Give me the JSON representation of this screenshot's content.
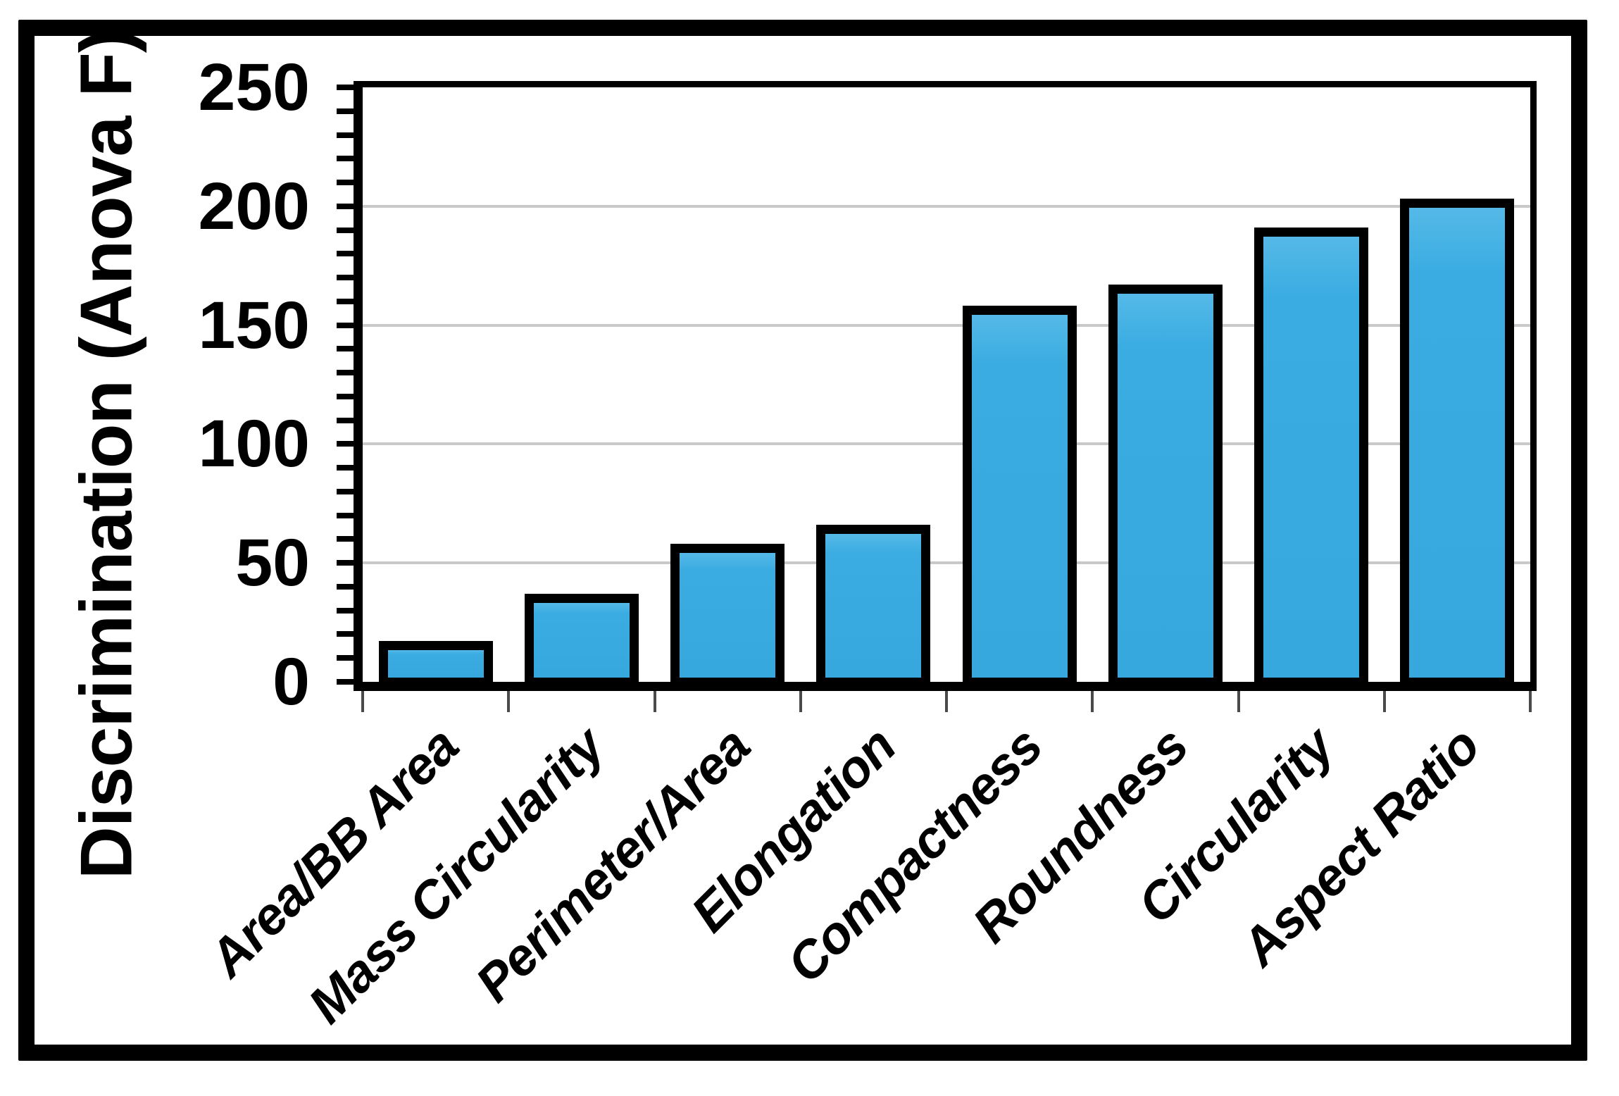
{
  "colors": {
    "bar_fill": "#3aace1",
    "bar_border": "#000000",
    "gridline": "#c9c9c9",
    "axis": "#000000",
    "background": "#ffffff"
  },
  "y_axis": {
    "title": "Discrimination (Anova F)",
    "tick_labels": [
      "0",
      "50",
      "100",
      "150",
      "200",
      "250"
    ],
    "tick_values": [
      0,
      50,
      100,
      150,
      200,
      250
    ],
    "minor_tick_step": 10
  },
  "chart_data": {
    "type": "bar",
    "title": "",
    "xlabel": "",
    "ylabel": "Discrimination (Anova F)",
    "categories": [
      "Area/BB Area",
      "Mass Circularity",
      "Perimeter/Area",
      "Elongation",
      "Compactness",
      "Roundness",
      "Circularity",
      "Aspect Ratio"
    ],
    "values": [
      15,
      35,
      56,
      64,
      156,
      165,
      189,
      201
    ],
    "ylim": [
      0,
      250
    ],
    "ytick_step": 50,
    "grid": "horizontal-major",
    "gridline_values": [
      50,
      100,
      150,
      200
    ],
    "legend": "none",
    "bar_outline": "thick-black",
    "label_rotation_deg": 45
  }
}
